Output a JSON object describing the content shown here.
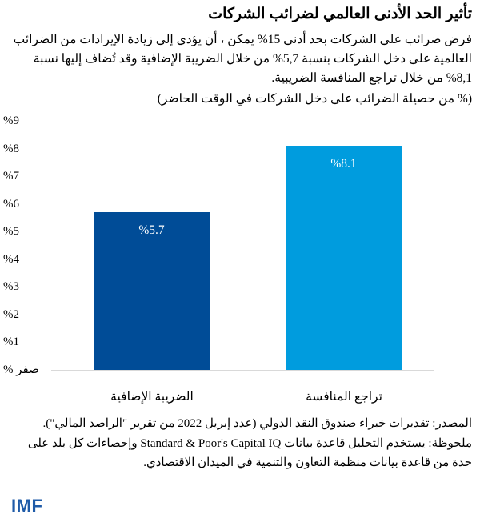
{
  "header": {
    "title": "تأثير الحد الأدنى العالمي لضرائب الشركات",
    "subtitle": "فرض ضرائب على الشركات بحد أدنى 15% يمكن ، أن يؤدي إلى زيادة الإيرادات من الضرائب العالمية على دخل الشركات بنسبة 5,7% من خلال الضريبة الإضافية وقد تُضاف إليها نسبة 8,1% من خلال تراجع المنافسة الضريبية.",
    "unit": "(% من حصيلة الضرائب على دخل الشركات في الوقت الحاضر)"
  },
  "chart_data": {
    "type": "bar",
    "title": "تأثير الحد الأدنى العالمي لضرائب الشركات",
    "ylabel": "% من حصيلة الضرائب على دخل الشركات في الوقت الحاضر",
    "xlabel": "",
    "categories": [
      "الضريبة الإضافية",
      "تراجع المنافسة"
    ],
    "values": [
      5.7,
      8.1
    ],
    "value_labels": [
      "%5.7",
      "%8.1"
    ],
    "colors": [
      "#004c97",
      "#009cde"
    ],
    "ylim": [
      0,
      9
    ],
    "yticks": [
      0,
      1,
      2,
      3,
      4,
      5,
      6,
      7,
      8,
      9
    ],
    "ytick_labels": [
      "% صفر",
      "%1",
      "%2",
      "%3",
      "%4",
      "%5",
      "%6",
      "%7",
      "%8",
      "%9"
    ],
    "grid": false,
    "legend": null
  },
  "footer": {
    "source": "المصدر: تقديرات خبراء صندوق النقد الدولي (عدد إبريل 2022 من تقرير \"الراصد المالي\").",
    "note": "ملحوظة: يستخدم التحليل قاعدة بيانات Standard & Poor's Capital IQ وإحصاءات كل بلد على حدة من قاعدة بيانات منظمة التعاون والتنمية في الميدان الاقتصادي.",
    "logo": "IMF"
  }
}
